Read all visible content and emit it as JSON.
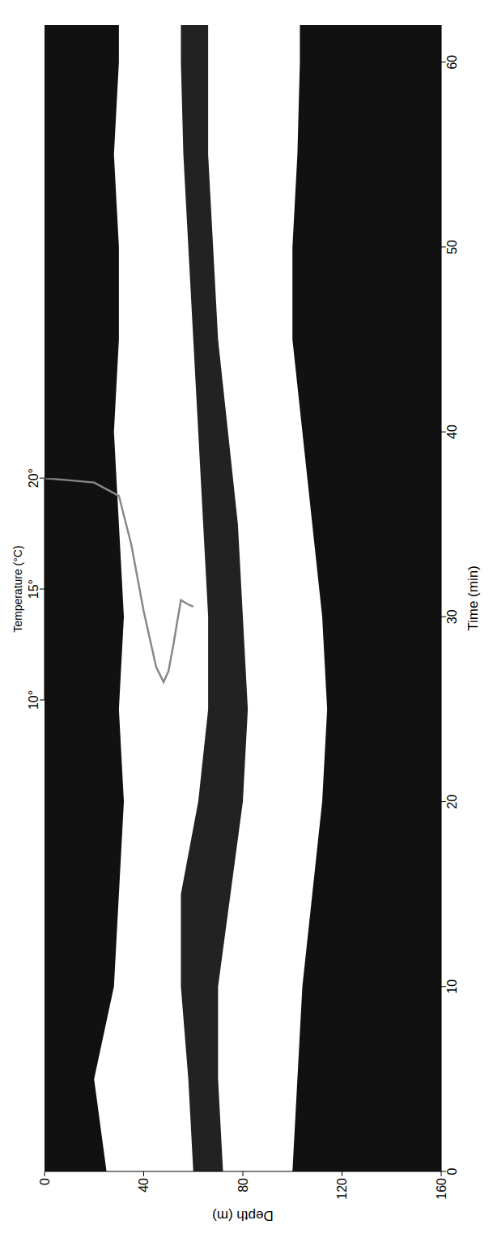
{
  "chart_data": [
    {
      "type": "area",
      "x_label": "Time (min)",
      "y_label": "Depth (m)",
      "xlim": [
        0,
        62
      ],
      "xticks": [
        0,
        10,
        20,
        30,
        40,
        50,
        60
      ],
      "ylim": [
        0,
        160
      ],
      "yticks": [
        0,
        40,
        80,
        120,
        160
      ],
      "x": [
        0,
        5,
        10,
        15,
        20,
        25,
        30,
        35,
        40,
        45,
        50,
        55,
        60,
        62
      ],
      "series": [
        {
          "color": "#111111",
          "from": [
            0,
            0,
            0,
            0,
            0,
            0,
            0,
            0,
            0,
            0,
            0,
            0,
            0,
            0
          ],
          "to": [
            25,
            20,
            28,
            30,
            32,
            30,
            32,
            30,
            28,
            30,
            30,
            28,
            30,
            30
          ]
        },
        {
          "color": "#222222",
          "from": [
            60,
            58,
            55,
            55,
            62,
            66,
            66,
            64,
            62,
            60,
            58,
            56,
            55,
            55
          ],
          "to": [
            72,
            70,
            70,
            75,
            80,
            82,
            80,
            78,
            74,
            70,
            68,
            66,
            66,
            66
          ]
        },
        {
          "color": "#111111",
          "from": [
            100,
            102,
            104,
            108,
            112,
            114,
            112,
            108,
            104,
            100,
            100,
            102,
            103,
            103
          ],
          "to": [
            160,
            160,
            160,
            160,
            160,
            160,
            160,
            160,
            160,
            160,
            160,
            160,
            160,
            160
          ]
        }
      ]
    },
    {
      "type": "line",
      "x_label": "Temperature (°C)",
      "tick_labels": "x",
      "xlim": [
        10,
        20
      ],
      "xticks": [
        {
          "value": 10,
          "label": "10°"
        },
        {
          "value": 15,
          "label": "15°"
        },
        {
          "value": 20,
          "label": "20°"
        }
      ],
      "ylim": [
        0,
        160
      ],
      "color": "#888888",
      "x": [
        20,
        19.9,
        19.8,
        19.2,
        17,
        14,
        11.5,
        10.8,
        11.3,
        12.5,
        14.5,
        14.3,
        14.2
      ],
      "y": [
        0,
        10,
        20,
        30,
        35,
        40,
        45,
        48,
        50,
        52,
        55,
        58,
        60
      ]
    }
  ]
}
